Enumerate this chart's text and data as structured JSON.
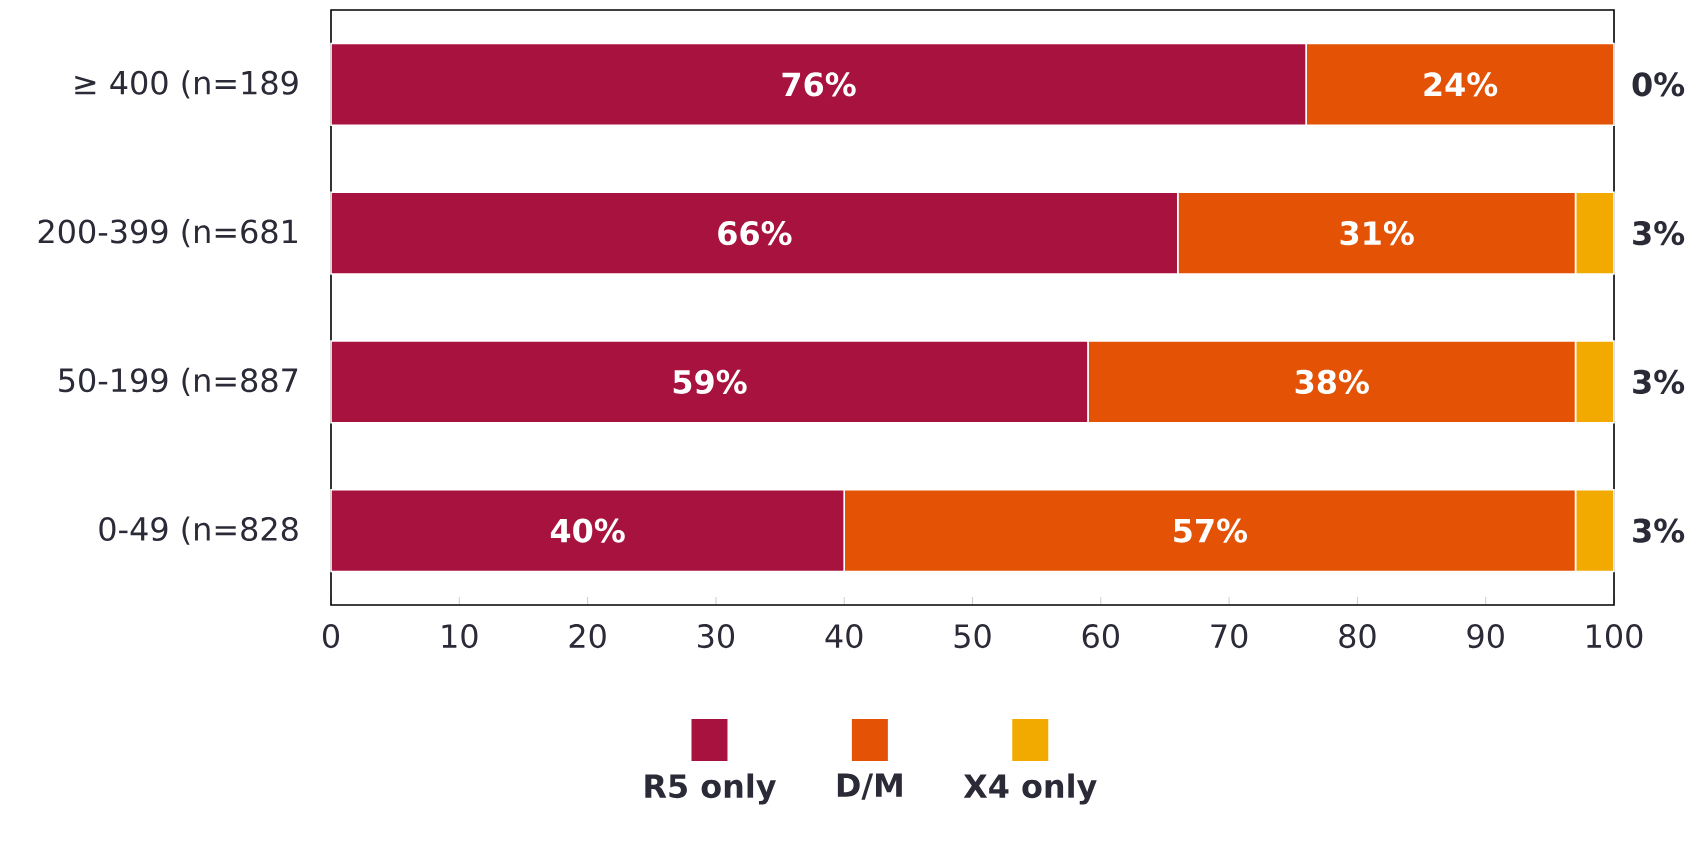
{
  "chart_data": {
    "type": "bar",
    "orientation": "horizontal",
    "stacked": true,
    "categories": [
      "≥ 400 (n=189",
      "200-399 (n=681",
      "50-199 (n=887",
      "0-49 (n=828"
    ],
    "series": [
      {
        "name": "R5 only",
        "color": "#a8123e",
        "values": [
          76,
          66,
          59,
          40
        ],
        "value_labels": [
          "76%",
          "66%",
          "59%",
          "40%"
        ]
      },
      {
        "name": "D/M",
        "color": "#e35205",
        "values": [
          24,
          31,
          38,
          57
        ],
        "value_labels": [
          "24%",
          "31%",
          "38%",
          "57%"
        ]
      },
      {
        "name": "X4 only",
        "color": "#f2a900",
        "values": [
          0,
          3,
          3,
          3
        ],
        "value_labels": [
          "0%",
          "3%",
          "3%",
          "3%"
        ]
      }
    ],
    "xlim": [
      0,
      100
    ],
    "xticks": [
      0,
      10,
      20,
      30,
      40,
      50,
      60,
      70,
      80,
      90,
      100
    ],
    "grid": false,
    "legend": "bottom"
  }
}
